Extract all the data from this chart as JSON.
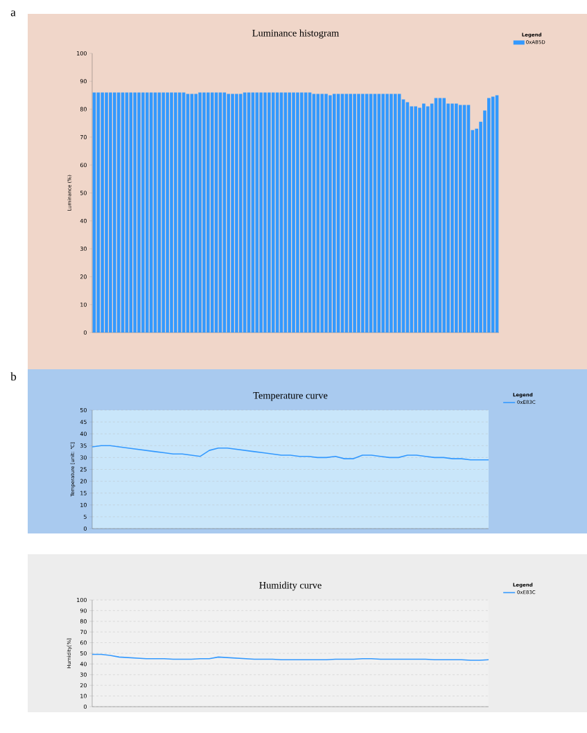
{
  "chart_data": [
    {
      "type": "bar",
      "title": "Luminance histogram",
      "ylabel": "Luminance (%)",
      "legend_title": "Legend",
      "annotations": [
        "a"
      ],
      "categories": [
        null,
        null,
        null,
        null,
        null,
        null,
        null,
        null,
        null,
        null,
        null,
        null,
        null,
        null,
        null,
        null,
        null,
        null,
        null,
        null,
        null,
        null,
        null,
        null,
        null,
        null,
        null,
        null,
        null,
        null,
        null,
        null,
        null,
        null,
        null,
        null,
        null,
        null,
        null,
        null,
        null,
        null,
        null,
        null,
        null,
        null,
        null,
        null,
        null,
        null,
        null,
        null,
        null,
        null,
        null,
        null,
        null,
        null,
        null,
        null,
        null,
        null,
        null,
        null,
        null,
        null,
        null,
        null,
        null,
        null,
        null,
        null,
        null,
        null,
        null,
        null,
        null,
        null,
        null,
        null,
        null,
        null,
        null,
        null,
        null,
        null,
        null,
        null,
        null,
        null,
        null,
        null,
        null,
        null,
        null,
        null,
        null,
        null,
        null,
        null
      ],
      "series": [
        {
          "name": "0xAB5D",
          "color": "#3399ff",
          "values": [
            86,
            86,
            86,
            86,
            86,
            86,
            86,
            86,
            86,
            86,
            86,
            86,
            86,
            86,
            86,
            86,
            86,
            86,
            86,
            86,
            86,
            86,
            86,
            85.5,
            85.5,
            85.5,
            86,
            86,
            86,
            86,
            86,
            86,
            86,
            85.5,
            85.5,
            85.5,
            85.5,
            86,
            86,
            86,
            86,
            86,
            86,
            86,
            86,
            86,
            86,
            86,
            86,
            86,
            86,
            86,
            86,
            86,
            85.5,
            85.5,
            85.5,
            85.5,
            85,
            85.5,
            85.5,
            85.5,
            85.5,
            85.5,
            85.5,
            85.5,
            85.5,
            85.5,
            85.5,
            85.5,
            85.5,
            85.5,
            85.5,
            85.5,
            85.5,
            85.5,
            83.5,
            82.5,
            81,
            81,
            80.5,
            82,
            81,
            82,
            84,
            84,
            84,
            82,
            82,
            82,
            81.5,
            81.5,
            81.5,
            72.5,
            73,
            75.5,
            79.5,
            84,
            84.5,
            85
          ]
        }
      ],
      "ylim": [
        0,
        100
      ],
      "yticks": [
        0,
        10,
        20,
        30,
        40,
        50,
        60,
        70,
        80,
        90,
        100
      ],
      "grid": false,
      "legend": "top right"
    },
    {
      "type": "line",
      "title": "Temperature curve",
      "ylabel": "Temperature [unit: ℃]",
      "legend_title": "Legend",
      "annotations": [
        "b"
      ],
      "categories": [
        null,
        null,
        null,
        null,
        null,
        null,
        null,
        null,
        null,
        null,
        null,
        null,
        null,
        null,
        null,
        null,
        null,
        null,
        null,
        null,
        null,
        null,
        null,
        null,
        null,
        null,
        null,
        null,
        null,
        null,
        null,
        null,
        null,
        null,
        null,
        null,
        null,
        null,
        null,
        null,
        null,
        null,
        null,
        null,
        null
      ],
      "series": [
        {
          "name": "0xE83C",
          "color": "#3399ff",
          "values": [
            34.5,
            35,
            35,
            34.5,
            34,
            33.5,
            33,
            32.5,
            32,
            31.5,
            31.5,
            31,
            30.5,
            33,
            34,
            34,
            33.5,
            33,
            32.5,
            32,
            31.5,
            31,
            31,
            30.5,
            30.5,
            30,
            30,
            30.5,
            29.5,
            29.5,
            31,
            31,
            30.5,
            30,
            30,
            31,
            31,
            30.5,
            30,
            30,
            29.5,
            29.5,
            29,
            29,
            29
          ]
        }
      ],
      "ylim": [
        0,
        50
      ],
      "yticks": [
        0,
        5,
        10,
        15,
        20,
        25,
        30,
        35,
        40,
        45,
        50
      ],
      "grid": "y",
      "legend": "top right",
      "marker": "none"
    },
    {
      "type": "line",
      "title": "Humidity curve",
      "ylabel": "Humidity[%]",
      "legend_title": "Legend",
      "categories": [
        null,
        null,
        null,
        null,
        null,
        null,
        null,
        null,
        null,
        null,
        null,
        null,
        null,
        null,
        null,
        null,
        null,
        null,
        null,
        null,
        null,
        null,
        null,
        null,
        null,
        null,
        null,
        null,
        null,
        null,
        null,
        null,
        null,
        null,
        null,
        null,
        null,
        null,
        null,
        null,
        null,
        null,
        null,
        null,
        null
      ],
      "series": [
        {
          "name": "0xE83C",
          "color": "#3399ff",
          "values": [
            49,
            49,
            48,
            46.5,
            46,
            45.5,
            45,
            45,
            45,
            44.5,
            44.5,
            44.5,
            45,
            45,
            46.5,
            46,
            45.5,
            45,
            44.5,
            44.5,
            44.5,
            44,
            44,
            44,
            44,
            44,
            44,
            44.5,
            44.5,
            44.5,
            45,
            45,
            44.5,
            44.5,
            44.5,
            44.5,
            44.5,
            44.5,
            44,
            44,
            44,
            44,
            43.5,
            43.5,
            44
          ]
        }
      ],
      "ylim": [
        0,
        100
      ],
      "yticks": [
        0,
        10,
        20,
        30,
        40,
        50,
        60,
        70,
        80,
        90,
        100
      ],
      "grid": "y",
      "legend": "top right",
      "marker": "none"
    }
  ]
}
